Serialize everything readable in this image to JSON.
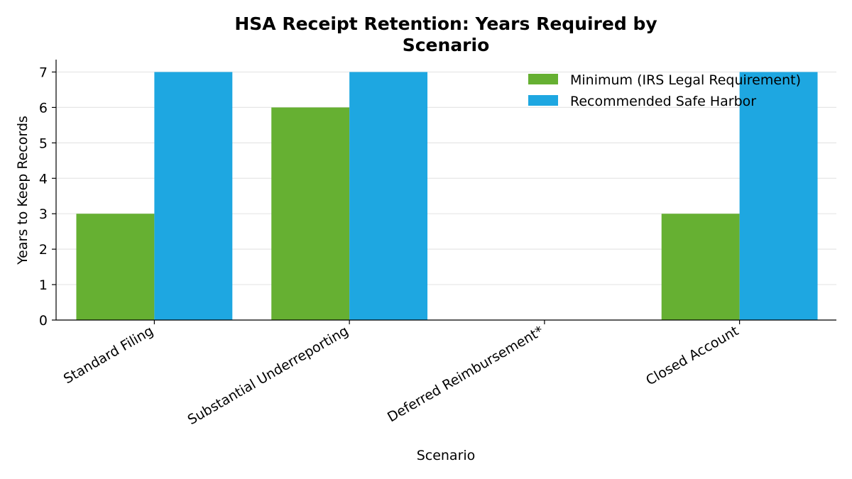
{
  "chart_data": {
    "type": "bar",
    "title_lines": [
      "HSA Receipt Retention: Years Required by",
      "Scenario"
    ],
    "xlabel": "Scenario",
    "ylabel": "Years to Keep Records",
    "categories": [
      "Standard Filing",
      "Substantial Underreporting",
      "Deferred Reimbursement*",
      "Closed Account"
    ],
    "series": [
      {
        "name": "Minimum (IRS Legal Requirement)",
        "values": [
          3,
          6,
          0,
          3
        ],
        "color": "#66b032"
      },
      {
        "name": "Recommended Safe Harbor",
        "values": [
          7,
          7,
          0,
          7
        ],
        "color": "#1ea7e1"
      }
    ],
    "ylim": [
      0,
      7.35
    ],
    "yticks": [
      "0",
      "1",
      "2",
      "3",
      "4",
      "5",
      "6",
      "7"
    ],
    "grid": true,
    "legend_position": "top-right"
  }
}
